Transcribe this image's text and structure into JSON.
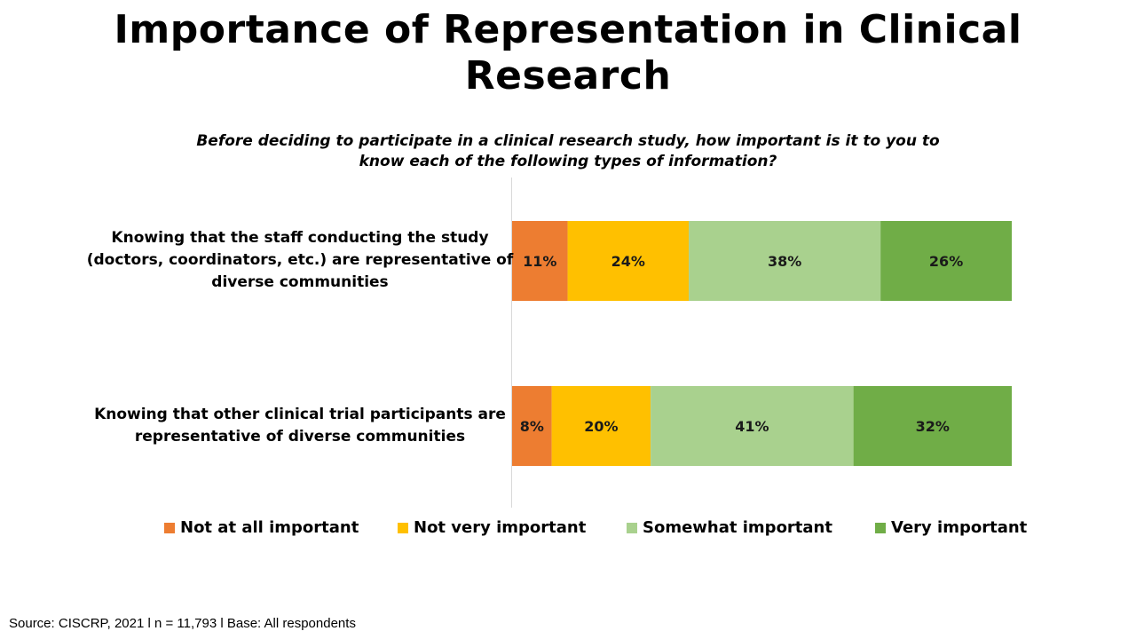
{
  "title": "Importance of Representation in Clinical Research",
  "subtitle": "Before deciding to participate in a clinical research study, how important is it to you to know each of the following types of information?",
  "source": "Source: CISCRP, 2021 l n = 11,793 l Base: All respondents",
  "chart_data": {
    "type": "bar",
    "orientation": "horizontal",
    "stacked": true,
    "percent_stacked": true,
    "categories": [
      "Knowing that the staff conducting the study (doctors, coordinators, etc.) are representative of diverse communities",
      "Knowing that other clinical trial participants are representative of diverse communities"
    ],
    "series": [
      {
        "name": "Not at all important",
        "values": [
          11,
          8
        ],
        "labels": [
          "11%",
          "8%"
        ],
        "color": "#ED7D31"
      },
      {
        "name": "Not very important",
        "values": [
          24,
          20
        ],
        "labels": [
          "24%",
          "20%"
        ],
        "color": "#FFC000"
      },
      {
        "name": "Somewhat important",
        "values": [
          38,
          41
        ],
        "labels": [
          "38%",
          "41%"
        ],
        "color": "#A9D18E"
      },
      {
        "name": "Very important",
        "values": [
          26,
          32
        ],
        "labels": [
          "26%",
          "32%"
        ],
        "color": "#70AD47"
      }
    ],
    "legend": "bottom",
    "grid": false
  }
}
